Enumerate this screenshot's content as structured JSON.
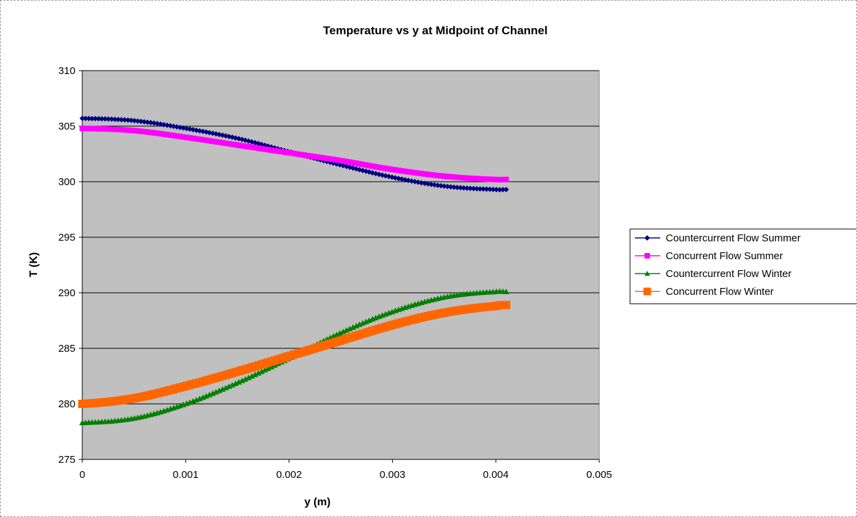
{
  "chart_data": {
    "type": "scatter",
    "title": "Temperature vs y at Midpoint of Channel",
    "xlabel": "y (m)",
    "ylabel": "T (K)",
    "xlim": [
      0,
      0.005
    ],
    "ylim": [
      275,
      310
    ],
    "xticks": [
      0,
      0.001,
      0.002,
      0.003,
      0.004,
      0.005
    ],
    "xtick_labels": [
      "0",
      "0.001",
      "0.002",
      "0.003",
      "0.004",
      "0.005"
    ],
    "yticks": [
      275,
      280,
      285,
      290,
      295,
      300,
      305,
      310
    ],
    "ytick_labels": [
      "275",
      "280",
      "285",
      "290",
      "295",
      "300",
      "305",
      "310"
    ],
    "grid": "horizontal major gridlines",
    "plot_background": "#c0c0c0",
    "legend_position": "right",
    "series": [
      {
        "name": "Countercurrent Flow Summer",
        "color": "#000080",
        "marker": "diamond",
        "x": [
          0,
          0.0005,
          0.001,
          0.0015,
          0.002,
          0.0025,
          0.003,
          0.0035,
          0.004,
          0.0041
        ],
        "y": [
          305.7,
          305.5,
          304.8,
          303.9,
          302.7,
          301.5,
          300.4,
          299.6,
          299.3,
          299.3
        ]
      },
      {
        "name": "Concurrent Flow Summer",
        "color": "#ff00ff",
        "marker": "square",
        "x": [
          0,
          0.0005,
          0.001,
          0.0015,
          0.002,
          0.0025,
          0.003,
          0.0035,
          0.004,
          0.0041
        ],
        "y": [
          304.8,
          304.6,
          304.0,
          303.3,
          302.6,
          301.9,
          301.1,
          300.5,
          300.2,
          300.2
        ]
      },
      {
        "name": "Countercurrent Flow Winter",
        "color": "#008000",
        "marker": "triangle",
        "x": [
          0,
          0.0005,
          0.001,
          0.0015,
          0.002,
          0.0025,
          0.003,
          0.0035,
          0.004,
          0.0041
        ],
        "y": [
          278.3,
          278.7,
          280.0,
          281.9,
          284.1,
          286.4,
          288.3,
          289.6,
          290.1,
          290.1
        ]
      },
      {
        "name": "Concurrent Flow Winter",
        "color": "#ff6600",
        "marker": "square",
        "x": [
          0,
          0.0005,
          0.001,
          0.0015,
          0.002,
          0.0025,
          0.003,
          0.0035,
          0.004,
          0.0041
        ],
        "y": [
          280.0,
          280.5,
          281.6,
          282.9,
          284.3,
          285.7,
          287.1,
          288.2,
          288.8,
          288.9
        ]
      }
    ]
  }
}
